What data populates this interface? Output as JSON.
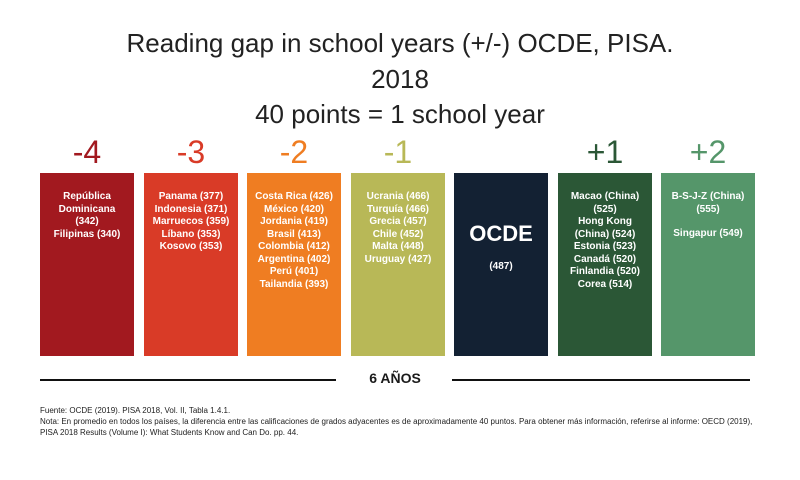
{
  "title": {
    "line1": "Reading gap in school years (+/-) OCDE, PISA.",
    "line2": "2018",
    "line3": "40 points = 1 school year"
  },
  "chart_data": {
    "type": "table",
    "title": "Reading gap in school years (+/-) OCDE, PISA. 2018 — 40 points = 1 school year",
    "groups": [
      {
        "gap": "-4",
        "color": "#A2191F",
        "lines": [
          "República",
          "Dominicana",
          "(342)",
          "Filipinas (340)"
        ]
      },
      {
        "gap": "-3",
        "color": "#D93B27",
        "lines": [
          "Panama (377)",
          "Indonesia (371)",
          "Marruecos (359)",
          "Líbano (353)",
          "Kosovo (353)"
        ]
      },
      {
        "gap": "-2",
        "color": "#EF7D22",
        "lines": [
          "Costa Rica (426)",
          "México (420)",
          "Jordania (419)",
          "Brasil (413)",
          "Colombia (412)",
          "Argentina (402)",
          "Perú (401)",
          "Tailandia (393)"
        ]
      },
      {
        "gap": "-1",
        "color": "#B8B857",
        "lines": [
          "Ucrania (466)",
          "Turquía (466)",
          "Grecia (457)",
          "Chile (452)",
          "Malta (448)",
          "Uruguay (427)"
        ]
      },
      {
        "gap": "",
        "color": "#132133",
        "name": "OCDE",
        "lines": [
          "(487)"
        ]
      },
      {
        "gap": "+1",
        "color": "#2B5736",
        "lines": [
          "Macao (China)",
          "(525)",
          "Hong Kong",
          "(China) (524)",
          "Estonia (523)",
          "Canadá (520)",
          "Finlandia (520)",
          "Corea (514)"
        ]
      },
      {
        "gap": "+2",
        "color": "#55966A",
        "lines": [
          "B-S-J-Z (China)",
          "(555)",
          "",
          "Singapur (549)"
        ]
      }
    ],
    "span_label": "6 AÑOS"
  },
  "footnote": {
    "line1": "Fuente: OCDE (2019). PISA 2018, Vol. II, Tabla 1.4.1.",
    "line2": "Nota: En promedio en todos los países, la diferencia entre las calificaciones de grados adyacentes es de aproximadamente 40 puntos. Para obtener más información, referirse al informe: OECD (2019), PISA 2018 Results (Volume I): What Students Know and Can Do. pp. 44."
  }
}
